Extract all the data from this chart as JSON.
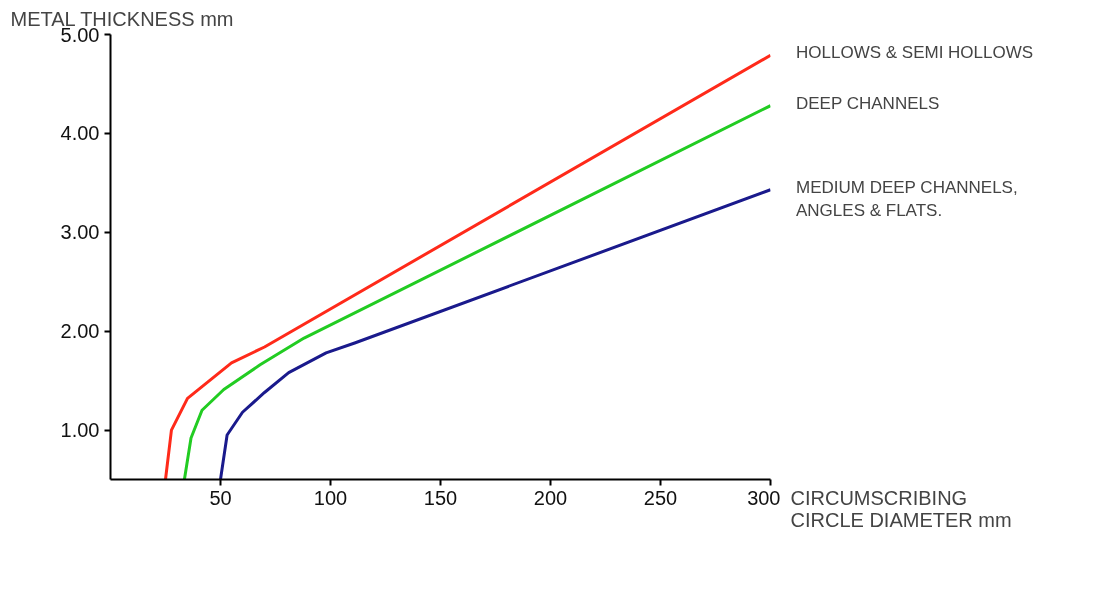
{
  "chart_data": {
    "type": "line",
    "ylabel": "METAL THICKNESS mm",
    "xlabel": "CIRCUMSCRIBING\nCIRCLE DIAMETER mm",
    "xlim": [
      0,
      300
    ],
    "ylim": [
      0.5,
      5.0
    ],
    "xticks": [
      50,
      100,
      150,
      200,
      250,
      300
    ],
    "yticks": [
      {
        "value": 1,
        "label": "1.00"
      },
      {
        "value": 2,
        "label": "2.00"
      },
      {
        "value": 3,
        "label": "3.00"
      },
      {
        "value": 4,
        "label": "4.00"
      },
      {
        "value": 5,
        "label": "5.00"
      }
    ],
    "grid": false,
    "legend": false,
    "series": [
      {
        "name": "HOLLOWS & SEMI HOLLOWS",
        "color": "#ff2a1a",
        "x": [
          25,
          27.7,
          35,
          45,
          55,
          70,
          300
        ],
        "values": [
          0.5,
          1.0,
          1.32,
          1.5,
          1.68,
          1.84,
          4.79
        ]
      },
      {
        "name": "DEEP CHANNELS",
        "color": "#22cc22",
        "x": [
          33.6,
          36.6,
          41.6,
          51.5,
          68,
          88,
          300
        ],
        "values": [
          0.5,
          0.92,
          1.2,
          1.41,
          1.66,
          1.93,
          4.28
        ]
      },
      {
        "name": "MEDIUM DEEP CHANNELS,\nANGLES & FLATS.",
        "color": "#1a1a8c",
        "x": [
          50,
          53,
          60,
          70,
          81,
          98,
          111,
          300
        ],
        "values": [
          0.5,
          0.95,
          1.18,
          1.38,
          1.58,
          1.78,
          1.88,
          3.43
        ]
      }
    ]
  }
}
